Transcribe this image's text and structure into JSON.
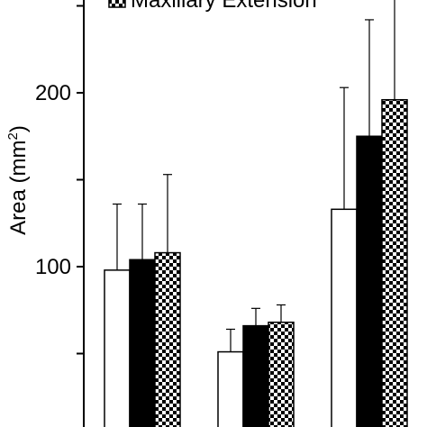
{
  "chart_data": {
    "type": "bar",
    "ylabel": "Area (mm",
    "ylabel_sup": "2",
    "ylabel_close": ")",
    "yticks": [
      100,
      200
    ],
    "ylim": [
      50,
      248
    ],
    "groups": 3,
    "series": [
      {
        "name": "",
        "fill": "white",
        "values": [
          98,
          51,
          133
        ],
        "errors": [
          136,
          64,
          203
        ]
      },
      {
        "name": "",
        "fill": "black",
        "values": [
          104,
          66,
          175
        ],
        "errors": [
          136,
          76,
          242
        ]
      },
      {
        "name": "Maxillary Extension",
        "fill": "checker",
        "values": [
          108,
          68,
          196
        ],
        "errors": [
          153,
          78,
          255
        ]
      }
    ],
    "legend_placement": "top",
    "colors": {
      "black": "#000000",
      "white": "#ffffff"
    }
  }
}
